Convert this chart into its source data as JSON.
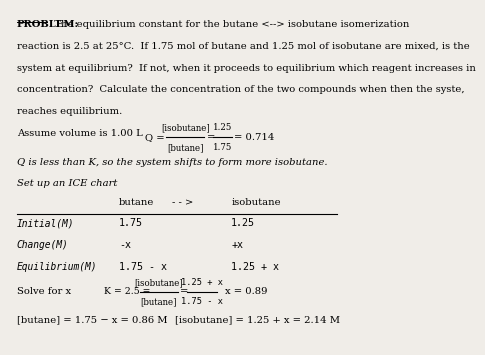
{
  "bg_color": "#f0ede8",
  "title_bold": "PROBLEM:",
  "assume_text": "Assume volume is 1.00 L",
  "italic_text1": "Q is less than K, so the system shifts to form more isobutane.",
  "italic_text2": "Set up an ICE chart",
  "ice_header_left": "butane",
  "ice_header_arrow": "- - >",
  "ice_header_right": "isobutane",
  "row1_label": "Initial(M)",
  "row1_butane": "1.75",
  "row1_isobutane": "1.25",
  "row2_label": "Change(M)",
  "row2_butane": "-x",
  "row2_isobutane": "+x",
  "row3_label": "Equilibrium(M)",
  "row3_butane": "1.75 - x",
  "row3_isobutane": "1.25 + x",
  "solve_label": "Solve for x",
  "K_text": "K = 2.5 =",
  "K_num": "[isobutane]",
  "K_denom": "[butane]",
  "K_eq_num": "1.25 + x",
  "K_eq_denom": "1.75 - x",
  "x_result": "x = 0.89",
  "final_butane": "[butane] = 1.75 − x = 0.86 M",
  "final_isobutane": "[isobutane] = 1.25 + x = 2.14 M",
  "problem_line1": "  The equilibrium constant for the butane <--> isobutane isomerization",
  "problem_lines": [
    "reaction is 2.5 at 25°C.  If 1.75 mol of butane and 1.25 mol of isobutane are mixed, is the",
    "system at equilibrium?  If not, when it proceeds to equilibrium which reagent increases in",
    "concentration?  Calculate the concentration of the two compounds when then the syste,",
    "reaches equilibrium."
  ]
}
